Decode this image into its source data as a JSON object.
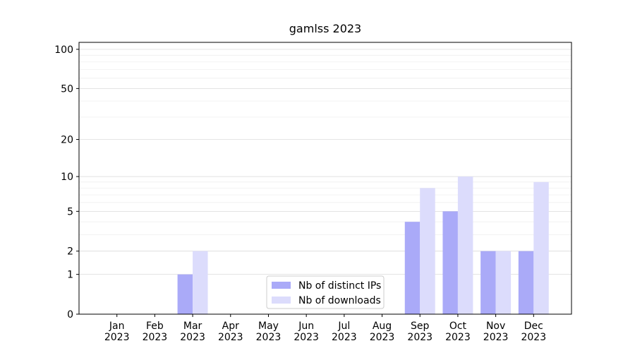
{
  "chart_data": {
    "type": "bar",
    "title": "gamlss 2023",
    "categories": [
      "Jan\n2023",
      "Feb\n2023",
      "Mar\n2023",
      "Apr\n2023",
      "May\n2023",
      "Jun\n2023",
      "Jul\n2023",
      "Aug\n2023",
      "Sep\n2023",
      "Oct\n2023",
      "Nov\n2023",
      "Dec\n2023"
    ],
    "series": [
      {
        "name": "Nb of distinct IPs",
        "color": "#aaaaf8",
        "values": [
          0,
          0,
          1,
          0,
          0,
          0,
          0,
          0,
          4,
          5,
          2,
          2
        ]
      },
      {
        "name": "Nb of downloads",
        "color": "#dcdcfc",
        "values": [
          0,
          0,
          2,
          0,
          0,
          0,
          0,
          0,
          8,
          10,
          2,
          9
        ]
      }
    ],
    "yscale": "log1p",
    "ylim": [
      0,
      113
    ],
    "yticks": [
      0,
      1,
      2,
      5,
      10,
      20,
      50,
      100
    ],
    "yminor_ticks": [
      3,
      4,
      6,
      7,
      8,
      9,
      30,
      40,
      60,
      70,
      80,
      90
    ],
    "grid": true,
    "legend": "lower center"
  }
}
